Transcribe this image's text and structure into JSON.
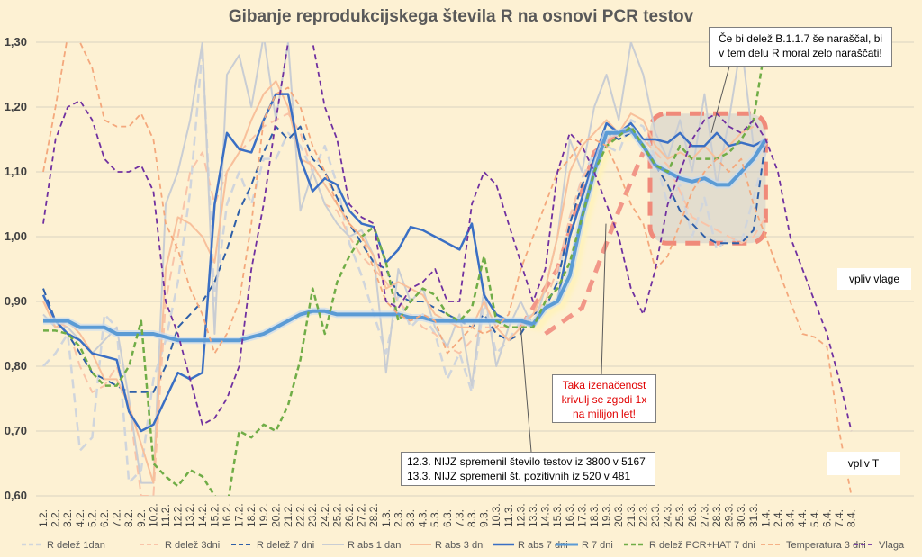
{
  "chart_data": {
    "type": "line",
    "title": "Gibanje reprodukcijskega števila R na osnovi PCR testov",
    "ylim": [
      0.6,
      1.3
    ],
    "yticks": [
      "0,60",
      "0,70",
      "0,80",
      "0,90",
      "1,00",
      "1,10",
      "1,20",
      "1,30"
    ],
    "categories": [
      "1.2.",
      "2.2.",
      "3.2.",
      "4.2.",
      "5.2.",
      "6.2.",
      "7.2.",
      "8.2.",
      "9.2.",
      "10.2.",
      "11.2.",
      "12.2.",
      "13.2.",
      "14.2.",
      "15.2.",
      "16.2.",
      "17.2.",
      "18.2.",
      "19.2.",
      "20.2.",
      "21.2.",
      "22.2.",
      "23.2.",
      "24.2.",
      "25.2.",
      "26.2.",
      "27.2.",
      "28.2.",
      "1.3.",
      "2.3.",
      "3.3.",
      "4.3.",
      "5.3.",
      "6.3.",
      "7.3.",
      "8.3.",
      "9.3.",
      "10.3.",
      "11.3.",
      "12.3.",
      "13.3.",
      "14.3.",
      "15.3.",
      "16.3.",
      "17.3.",
      "18.3.",
      "19.3.",
      "20.3.",
      "21.3.",
      "22.3.",
      "23.3.",
      "24.3.",
      "25.3.",
      "26.3.",
      "27.3.",
      "28.3.",
      "29.3.",
      "30.3.",
      "31.3.",
      "1.4.",
      "2.4.",
      "3.4.",
      "4.4.",
      "5.4.",
      "6.4.",
      "7.4.",
      "8.4."
    ],
    "series": [
      {
        "name": "R delež 1dan",
        "color": "#d0d5dc",
        "dash": "10,6",
        "width": 2.5,
        "values": [
          0.8,
          0.82,
          0.85,
          0.67,
          0.69,
          0.88,
          0.86,
          0.62,
          0.64,
          0.78,
          0.84,
          0.93,
          1.07,
          1.29,
          0.9,
          1.05,
          1.1,
          1.05,
          1.12,
          1.12,
          1.16,
          1.14,
          1.1,
          1.14,
          1.08,
          0.99,
          0.94,
          0.88,
          0.82,
          0.91,
          0.86,
          0.88,
          0.85,
          0.78,
          0.82,
          0.76,
          0.9,
          0.82,
          0.84,
          0.87,
          0.88,
          0.89,
          0.93,
          1.03,
          1.09,
          1.13,
          1.14,
          1.13,
          1.18,
          1.17,
          1.12,
          1.05,
          1.08,
          1.0,
          1.06,
          0.98,
          1.0,
          0.99,
          1.06,
          1.13,
          null,
          null,
          null,
          null,
          null,
          null,
          null
        ]
      },
      {
        "name": "R delež 3dni",
        "color": "#f9c4a8",
        "dash": "10,6",
        "width": 2,
        "values": [
          0.9,
          0.87,
          0.86,
          0.8,
          0.76,
          0.77,
          0.8,
          0.74,
          0.6,
          0.6,
          0.9,
          1.0,
          1.1,
          1.13,
          1.05,
          1.1,
          1.13,
          1.15,
          1.17,
          1.18,
          1.19,
          1.16,
          1.1,
          1.05,
          1.04,
          1.0,
          0.97,
          0.95,
          0.93,
          0.9,
          0.88,
          0.86,
          0.85,
          0.83,
          0.82,
          0.84,
          0.86,
          0.86,
          0.86,
          0.86,
          0.88,
          0.9,
          0.95,
          1.03,
          1.09,
          1.12,
          1.15,
          1.16,
          1.16,
          1.15,
          1.13,
          1.11,
          1.07,
          1.03,
          1.02,
          1.01,
          1.0,
          0.99,
          1.0,
          1.03,
          null,
          null,
          null,
          null,
          null,
          null,
          null
        ]
      },
      {
        "name": "R delež 7 dni",
        "color": "#2e5fa8",
        "dash": "8,5",
        "width": 2,
        "values": [
          0.92,
          0.87,
          0.85,
          0.82,
          0.79,
          0.78,
          0.77,
          0.76,
          0.76,
          0.76,
          0.8,
          0.86,
          0.88,
          0.9,
          0.93,
          0.98,
          1.04,
          1.08,
          1.13,
          1.17,
          1.15,
          1.17,
          1.12,
          1.1,
          1.06,
          1.02,
          0.99,
          0.96,
          0.95,
          0.91,
          0.9,
          0.9,
          0.89,
          0.88,
          0.87,
          0.86,
          0.88,
          0.85,
          0.84,
          0.85,
          0.88,
          0.89,
          0.93,
          1.02,
          1.08,
          1.12,
          1.16,
          1.15,
          1.16,
          1.14,
          1.11,
          1.08,
          1.04,
          1.02,
          1.0,
          0.99,
          0.99,
          0.99,
          1.01,
          1.15,
          null,
          null,
          null,
          null,
          null,
          null,
          null
        ]
      },
      {
        "name": "R abs 1 dan",
        "color": "#c9cdd3",
        "dash": "",
        "width": 2,
        "values": [
          0.88,
          0.86,
          0.86,
          0.84,
          0.82,
          0.84,
          0.86,
          0.75,
          0.62,
          0.62,
          1.05,
          1.1,
          1.18,
          1.3,
          0.85,
          1.25,
          1.28,
          1.2,
          1.31,
          1.18,
          1.3,
          1.04,
          1.1,
          1.05,
          1.02,
          1.0,
          1.01,
          0.97,
          0.79,
          0.95,
          0.9,
          0.92,
          0.86,
          0.83,
          0.88,
          0.77,
          0.92,
          0.8,
          0.86,
          0.9,
          0.86,
          0.92,
          1.0,
          1.15,
          1.1,
          1.2,
          1.25,
          1.18,
          1.3,
          1.25,
          1.16,
          1.12,
          1.18,
          1.1,
          1.22,
          1.08,
          1.18,
          1.3,
          1.14,
          null,
          null,
          null,
          null,
          null,
          null,
          null,
          null
        ]
      },
      {
        "name": "R abs 3 dni",
        "color": "#f8c09b",
        "dash": "",
        "width": 2,
        "values": [
          0.9,
          0.86,
          0.87,
          0.85,
          0.82,
          0.78,
          0.78,
          0.74,
          0.68,
          0.62,
          0.95,
          1.03,
          1.02,
          1.0,
          0.96,
          1.1,
          1.13,
          1.18,
          1.22,
          1.24,
          1.2,
          1.12,
          1.11,
          1.08,
          1.05,
          1.02,
          1.0,
          0.97,
          0.92,
          0.93,
          0.92,
          0.91,
          0.88,
          0.87,
          0.86,
          0.86,
          0.9,
          0.86,
          0.84,
          0.86,
          0.88,
          0.92,
          1.0,
          1.1,
          1.14,
          1.16,
          1.18,
          1.16,
          1.19,
          1.18,
          1.14,
          1.12,
          1.13,
          1.12,
          1.14,
          1.12,
          1.14,
          1.16,
          1.17,
          null,
          null,
          null,
          null,
          null,
          null,
          null,
          null
        ]
      },
      {
        "name": "R abs 7 dni",
        "color": "#3a6fc4",
        "dash": "",
        "width": 2.5,
        "values": [
          0.91,
          0.87,
          0.85,
          0.84,
          0.82,
          0.815,
          0.81,
          0.73,
          0.7,
          0.71,
          0.75,
          0.79,
          0.78,
          0.79,
          1.05,
          1.16,
          1.135,
          1.13,
          1.18,
          1.22,
          1.22,
          1.12,
          1.07,
          1.09,
          1.08,
          1.04,
          1.02,
          1.015,
          0.96,
          0.98,
          1.015,
          1.01,
          1.0,
          0.99,
          0.98,
          1.02,
          0.91,
          0.88,
          0.87,
          0.87,
          0.86,
          0.89,
          0.9,
          1.0,
          1.06,
          1.12,
          1.175,
          1.16,
          1.175,
          1.15,
          1.15,
          1.145,
          1.16,
          1.14,
          1.14,
          1.16,
          1.14,
          1.145,
          1.14,
          1.15,
          null,
          null,
          null,
          null,
          null,
          null,
          null
        ]
      },
      {
        "name": "R 7 dni",
        "color": "#5b9bd5",
        "dash": "",
        "width": 4,
        "values": [
          0.87,
          0.87,
          0.87,
          0.86,
          0.86,
          0.86,
          0.85,
          0.85,
          0.85,
          0.85,
          0.845,
          0.84,
          0.84,
          0.84,
          0.84,
          0.84,
          0.84,
          0.845,
          0.85,
          0.86,
          0.87,
          0.88,
          0.885,
          0.885,
          0.88,
          0.88,
          0.88,
          0.88,
          0.88,
          0.88,
          0.875,
          0.875,
          0.87,
          0.87,
          0.87,
          0.87,
          0.87,
          0.87,
          0.87,
          0.87,
          0.865,
          0.89,
          0.9,
          0.94,
          1.03,
          1.1,
          1.16,
          1.16,
          1.165,
          1.14,
          1.11,
          1.1,
          1.09,
          1.085,
          1.09,
          1.08,
          1.08,
          1.1,
          1.12,
          1.15,
          null,
          null,
          null,
          null,
          null,
          null,
          null
        ]
      },
      {
        "name": "R delež PCR+HAT 7 dni",
        "color": "#70ad47",
        "dash": "6,4",
        "width": 2.5,
        "values": [
          0.855,
          0.855,
          0.85,
          0.83,
          0.79,
          0.77,
          0.77,
          0.8,
          0.87,
          0.65,
          0.63,
          0.615,
          0.64,
          0.63,
          0.6,
          0.58,
          0.7,
          0.69,
          0.71,
          0.7,
          0.74,
          0.81,
          0.92,
          0.85,
          0.93,
          0.97,
          1.0,
          1.015,
          0.96,
          0.87,
          0.9,
          0.92,
          0.91,
          0.88,
          0.87,
          0.89,
          0.97,
          0.87,
          0.86,
          0.86,
          0.86,
          0.9,
          0.92,
          0.96,
          1.03,
          1.1,
          1.14,
          1.155,
          1.17,
          1.14,
          1.11,
          1.1,
          1.14,
          1.12,
          1.12,
          1.12,
          1.13,
          1.15,
          1.18,
          1.3,
          null,
          null,
          null,
          null,
          null,
          null,
          null
        ]
      },
      {
        "name": "Temperatura 3 dni",
        "color": "#f4a87c",
        "dash": "6,4",
        "width": 1.8,
        "values": [
          1.1,
          1.2,
          1.31,
          1.3,
          1.26,
          1.18,
          1.17,
          1.17,
          1.19,
          1.15,
          1.02,
          0.98,
          0.92,
          0.88,
          0.82,
          0.85,
          0.9,
          1.02,
          1.18,
          1.22,
          1.23,
          1.2,
          1.14,
          1.1,
          1.05,
          1.02,
          1.0,
          0.95,
          0.9,
          0.88,
          0.87,
          0.88,
          0.87,
          0.82,
          0.84,
          0.86,
          0.85,
          0.86,
          0.88,
          0.95,
          1.0,
          1.05,
          1.1,
          1.12,
          1.15,
          1.15,
          1.14,
          1.1,
          1.05,
          1.02,
          0.95,
          0.97,
          1.02,
          1.07,
          1.1,
          1.12,
          1.1,
          1.12,
          1.05,
          1.0,
          0.95,
          0.9,
          0.85,
          0.845,
          0.83,
          0.7,
          0.6
        ]
      },
      {
        "name": "Vlaga",
        "color": "#7030a0",
        "dash": "6,4",
        "width": 1.8,
        "values": [
          1.02,
          1.15,
          1.2,
          1.21,
          1.18,
          1.12,
          1.1,
          1.1,
          1.11,
          1.07,
          0.9,
          0.85,
          0.78,
          0.71,
          0.72,
          0.75,
          0.8,
          0.95,
          1.05,
          1.18,
          1.3,
          1.35,
          1.3,
          1.2,
          1.15,
          1.05,
          1.03,
          1.02,
          0.9,
          0.89,
          0.92,
          0.93,
          0.95,
          0.9,
          0.9,
          1.05,
          1.1,
          1.08,
          1.02,
          0.96,
          0.9,
          0.95,
          1.1,
          1.16,
          1.14,
          1.1,
          1.05,
          1.0,
          0.92,
          0.88,
          0.95,
          1.05,
          1.1,
          1.15,
          1.18,
          1.19,
          1.17,
          1.16,
          1.18,
          1.15,
          1.1,
          1.0,
          0.95,
          0.9,
          0.85,
          0.78,
          0.7
        ]
      }
    ],
    "annotations": {
      "top_right": "Če bi delež B.1.1.7 še naraščal, bi v tem delu R moral zelo naraščati!",
      "red_note": "Taka izenačenost krivulj se zgodi 1x na milijon let!",
      "bottom_note_line1": "12.3. NIJZ spremenil število testov iz 3800 v 5167",
      "bottom_note_line2": "13.3. NIJZ spremenil št. pozitivnih iz 520 v 481",
      "vpliv_vlage": "vpliv vlage",
      "vpliv_t": "vpliv T"
    },
    "grid": "horizontal",
    "legend_position": "bottom"
  }
}
